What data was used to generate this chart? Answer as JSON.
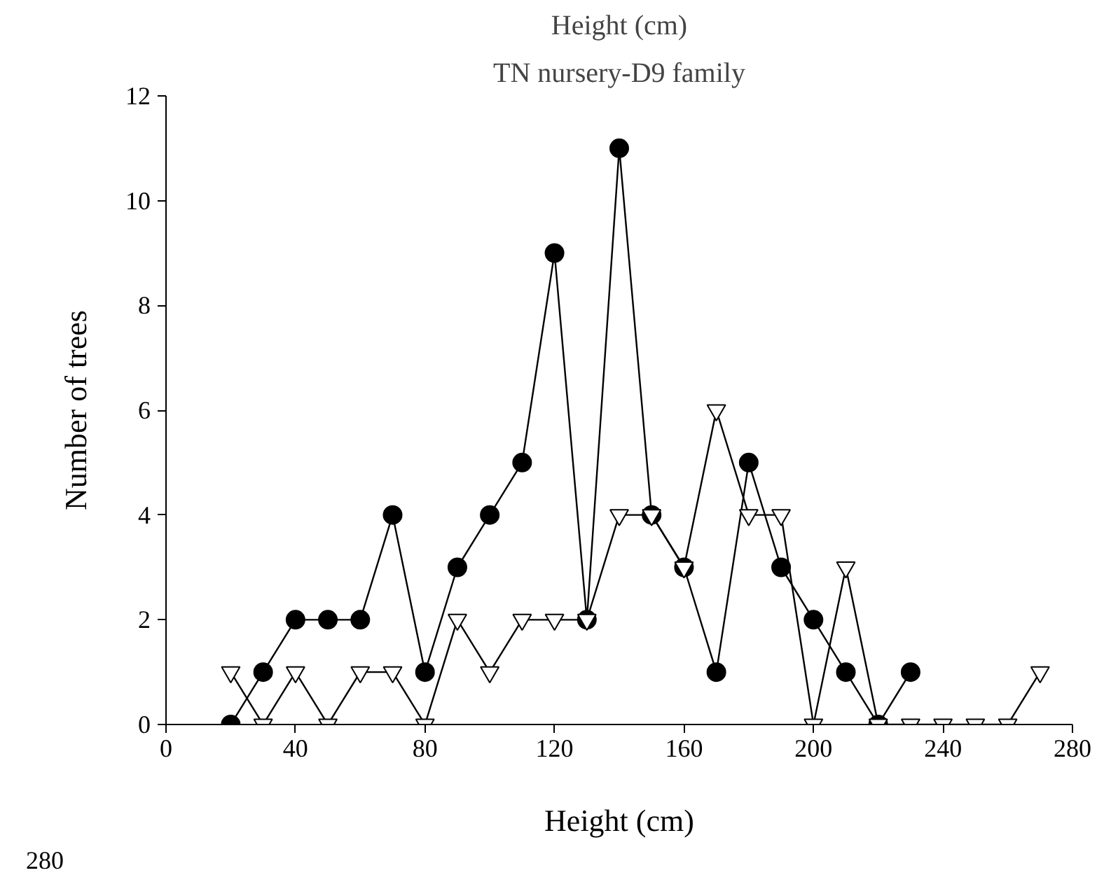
{
  "chart_data": {
    "type": "line",
    "title": "Height (cm)",
    "subtitle": "TN nursery-D9 family",
    "xlabel": "Height (cm)",
    "ylabel": "Number of trees",
    "xlim": [
      0,
      280
    ],
    "xticks": [
      0,
      40,
      80,
      120,
      160,
      200,
      240,
      280
    ],
    "ylim": [
      0,
      12
    ],
    "yticks": [
      0,
      2,
      4,
      6,
      8,
      10,
      12
    ],
    "grid": false,
    "annotations": [
      "280"
    ],
    "series": [
      {
        "color": "#000000",
        "marker": "circle",
        "x": [
          20,
          30,
          40,
          50,
          60,
          70,
          80,
          90,
          100,
          110,
          120,
          130,
          140,
          150,
          160,
          170,
          180,
          190,
          200,
          210,
          220,
          230
        ],
        "values": [
          0,
          1,
          2,
          2,
          2,
          4,
          1,
          3,
          4,
          5,
          9,
          2,
          11,
          4,
          3,
          1,
          5,
          3,
          2,
          1,
          0,
          1
        ]
      },
      {
        "color": "#000000",
        "marker": "triangle",
        "x": [
          20,
          30,
          40,
          50,
          60,
          70,
          80,
          90,
          100,
          110,
          120,
          130,
          140,
          150,
          160,
          170,
          180,
          190,
          200,
          210,
          220,
          230,
          240,
          250,
          260,
          270
        ],
        "values": [
          1,
          0,
          1,
          0,
          1,
          1,
          0,
          2,
          1,
          2,
          2,
          2,
          4,
          4,
          3,
          6,
          4,
          4,
          0,
          3,
          0,
          0,
          0,
          0,
          0,
          1
        ]
      }
    ]
  }
}
